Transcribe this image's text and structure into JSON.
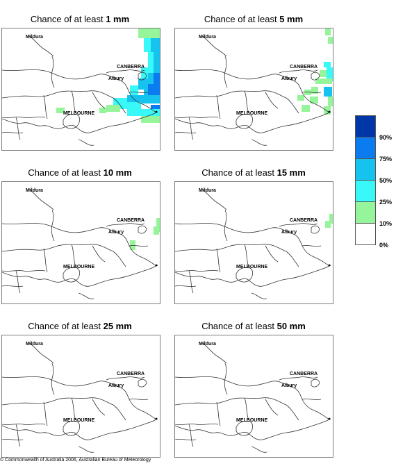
{
  "panels": [
    {
      "title_prefix": "Chance of at least ",
      "amount": "1 mm"
    },
    {
      "title_prefix": "Chance of at least ",
      "amount": "5 mm"
    },
    {
      "title_prefix": "Chance of at least ",
      "amount": "10 mm"
    },
    {
      "title_prefix": "Chance of at least ",
      "amount": "15 mm"
    },
    {
      "title_prefix": "Chance of at least ",
      "amount": "25 mm"
    },
    {
      "title_prefix": "Chance of at least ",
      "amount": "50 mm"
    }
  ],
  "cities": {
    "mildura": "Mildura",
    "canberra": "CANBERRA",
    "albury": "Albury",
    "melbourne": "MELBOURNE"
  },
  "legend": {
    "labels": [
      "90%",
      "75%",
      "50%",
      "25%",
      "10%",
      "0%"
    ],
    "colors": [
      "#0037a8",
      "#0a7cf0",
      "#16c2ee",
      "#38f8f8",
      "#96f49a",
      "#ffffff"
    ]
  },
  "footer": "© Commonwealth of Australia 2006, Australian Bureau of Meteorology"
}
